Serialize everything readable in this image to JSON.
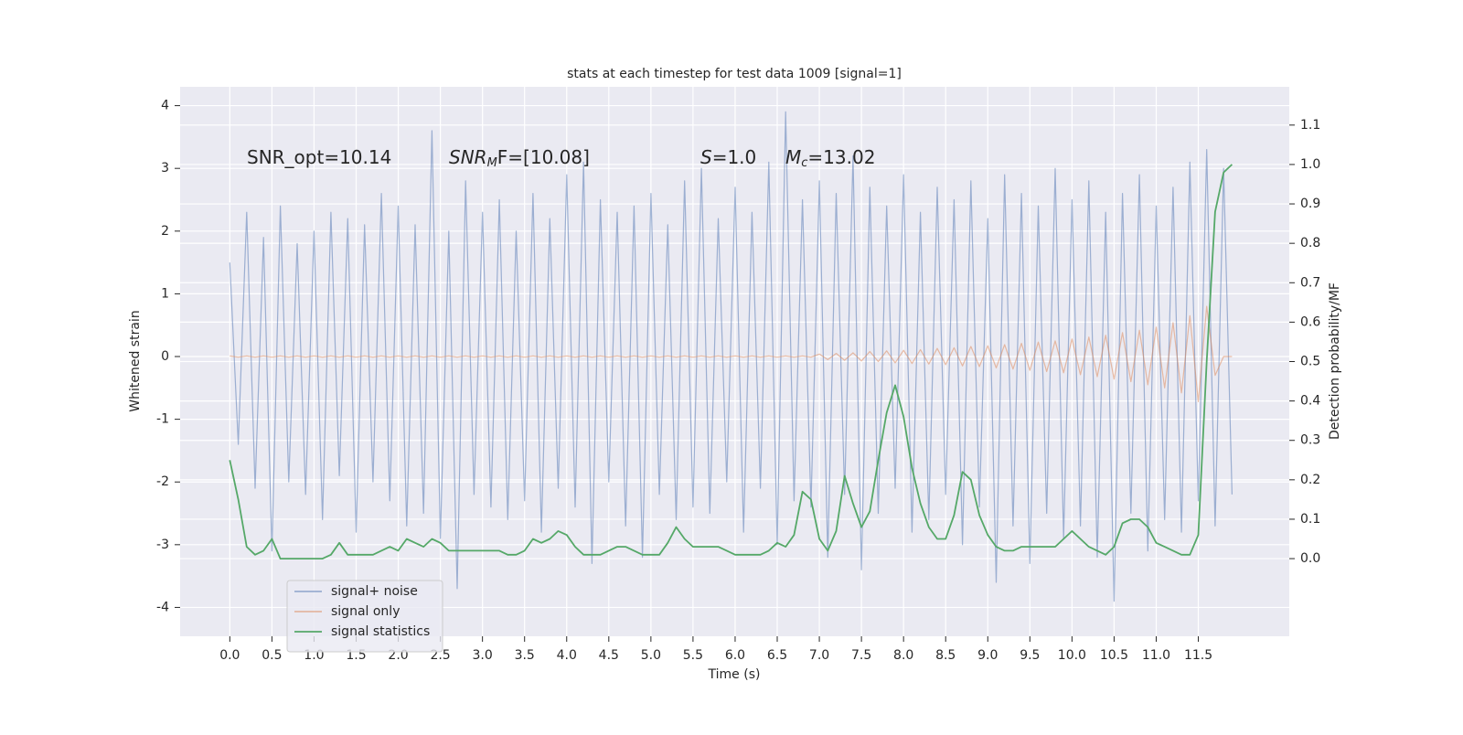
{
  "chart_data": {
    "type": "line",
    "title": "stats at each timestep for test data 1009 [signal=1]",
    "xlabel": "Time (s)",
    "ylabel": "Whitened strain",
    "y2label": "Detection probability/MF",
    "annotations": [
      [
        "SNR_opt=10.14"
      ],
      [
        "SNR",
        "M",
        "F=[10.08]"
      ],
      [
        "S",
        "=1.0"
      ],
      [
        "M",
        "c",
        "=13.02"
      ]
    ],
    "x": [
      0.0,
      0.1,
      0.2,
      0.3,
      0.4,
      0.5,
      0.6,
      0.7,
      0.8,
      0.9,
      1.0,
      1.1,
      1.2,
      1.3,
      1.4,
      1.5,
      1.6,
      1.7,
      1.8,
      1.9,
      2.0,
      2.1,
      2.2,
      2.3,
      2.4,
      2.5,
      2.6,
      2.7,
      2.8,
      2.9,
      3.0,
      3.1,
      3.2,
      3.3,
      3.4,
      3.5,
      3.6,
      3.7,
      3.8,
      3.9,
      4.0,
      4.1,
      4.2,
      4.3,
      4.4,
      4.5,
      4.6,
      4.7,
      4.8,
      4.9,
      5.0,
      5.1,
      5.2,
      5.3,
      5.4,
      5.5,
      5.6,
      5.7,
      5.8,
      5.9,
      6.0,
      6.1,
      6.2,
      6.3,
      6.4,
      6.5,
      6.6,
      6.7,
      6.8,
      6.9,
      7.0,
      7.1,
      7.2,
      7.3,
      7.4,
      7.5,
      7.6,
      7.7,
      7.8,
      7.9,
      8.0,
      8.1,
      8.2,
      8.3,
      8.4,
      8.5,
      8.6,
      8.7,
      8.8,
      8.9,
      9.0,
      9.1,
      9.2,
      9.3,
      9.4,
      9.5,
      9.6,
      9.7,
      9.8,
      9.9,
      10.0,
      10.1,
      10.2,
      10.3,
      10.4,
      10.5,
      10.6,
      10.7,
      10.8,
      10.9,
      11.0,
      11.1,
      11.2,
      11.3,
      11.4,
      11.5,
      11.6,
      11.7,
      11.8,
      11.9
    ],
    "series": [
      {
        "name": "signal+ noise",
        "color": "#4c72b0",
        "opacity": 0.5,
        "values": [
          1.5,
          -1.4,
          2.3,
          -2.1,
          1.9,
          -3.1,
          2.4,
          -2.0,
          1.8,
          -2.2,
          2.0,
          -2.6,
          2.3,
          -1.9,
          2.2,
          -2.8,
          2.1,
          -2.0,
          2.6,
          -2.3,
          2.4,
          -2.7,
          2.1,
          -2.5,
          3.6,
          -2.9,
          2.0,
          -3.7,
          2.8,
          -2.2,
          2.3,
          -2.4,
          2.5,
          -2.6,
          2.0,
          -2.3,
          2.6,
          -2.8,
          2.2,
          -2.1,
          2.9,
          -2.4,
          3.1,
          -3.3,
          2.5,
          -2.0,
          2.3,
          -2.7,
          2.4,
          -3.2,
          2.6,
          -2.2,
          2.1,
          -2.6,
          2.8,
          -2.4,
          3.0,
          -2.5,
          2.2,
          -2.0,
          2.7,
          -2.8,
          2.3,
          -2.1,
          3.1,
          -3.0,
          3.9,
          -2.3,
          2.5,
          -2.4,
          2.8,
          -3.2,
          2.6,
          -2.2,
          3.2,
          -3.4,
          2.7,
          -2.5,
          2.4,
          -2.1,
          2.9,
          -2.8,
          2.3,
          -2.6,
          2.7,
          -2.2,
          2.5,
          -3.0,
          2.8,
          -2.4,
          2.2,
          -3.6,
          2.9,
          -2.7,
          2.6,
          -3.3,
          2.4,
          -2.5,
          3.0,
          -2.9,
          2.5,
          -2.7,
          2.8,
          -3.2,
          2.3,
          -3.9,
          2.6,
          -2.5,
          2.9,
          -3.1,
          2.4,
          -2.6,
          2.7,
          -2.8,
          3.1,
          -2.3,
          3.3,
          -2.7,
          3.0,
          -2.2
        ]
      },
      {
        "name": "signal only",
        "color": "#dd8452",
        "opacity": 0.5,
        "values": [
          0.01,
          -0.01,
          0.01,
          -0.01,
          0.01,
          -0.01,
          0.01,
          -0.01,
          0.01,
          -0.01,
          0.01,
          -0.01,
          0.01,
          -0.01,
          0.01,
          -0.01,
          0.01,
          -0.01,
          0.01,
          -0.01,
          0.01,
          -0.01,
          0.01,
          -0.01,
          0.01,
          -0.01,
          0.01,
          -0.01,
          0.01,
          -0.01,
          0.01,
          -0.01,
          0.01,
          -0.01,
          0.01,
          -0.01,
          0.01,
          -0.01,
          0.01,
          -0.01,
          0.01,
          -0.01,
          0.01,
          -0.01,
          0.01,
          -0.01,
          0.01,
          -0.01,
          0.01,
          -0.01,
          0.01,
          -0.01,
          0.01,
          -0.01,
          0.01,
          -0.01,
          0.01,
          -0.01,
          0.01,
          -0.01,
          0.01,
          -0.01,
          0.01,
          -0.01,
          0.01,
          -0.01,
          0.01,
          -0.01,
          0.01,
          -0.01,
          0.04,
          -0.05,
          0.05,
          -0.06,
          0.06,
          -0.07,
          0.08,
          -0.08,
          0.09,
          -0.1,
          0.1,
          -0.11,
          0.11,
          -0.12,
          0.13,
          -0.13,
          0.14,
          -0.15,
          0.16,
          -0.16,
          0.17,
          -0.18,
          0.19,
          -0.2,
          0.21,
          -0.22,
          0.23,
          -0.24,
          0.25,
          -0.26,
          0.28,
          -0.29,
          0.31,
          -0.32,
          0.34,
          -0.36,
          0.38,
          -0.4,
          0.42,
          -0.45,
          0.47,
          -0.5,
          0.54,
          -0.58,
          0.65,
          -0.72,
          0.8,
          -0.3,
          0.0,
          0.0
        ]
      },
      {
        "name": "signal statistics",
        "color": "#55a868",
        "opacity": 1,
        "axis": "y2",
        "values": [
          0.25,
          0.15,
          0.03,
          0.01,
          0.02,
          0.05,
          0.0,
          0.0,
          0.0,
          0.0,
          0.0,
          0.0,
          0.01,
          0.04,
          0.01,
          0.01,
          0.01,
          0.01,
          0.02,
          0.03,
          0.02,
          0.05,
          0.04,
          0.03,
          0.05,
          0.04,
          0.02,
          0.02,
          0.02,
          0.02,
          0.02,
          0.02,
          0.02,
          0.01,
          0.01,
          0.02,
          0.05,
          0.04,
          0.05,
          0.07,
          0.06,
          0.03,
          0.01,
          0.01,
          0.01,
          0.02,
          0.03,
          0.03,
          0.02,
          0.01,
          0.01,
          0.01,
          0.04,
          0.08,
          0.05,
          0.03,
          0.03,
          0.03,
          0.03,
          0.02,
          0.01,
          0.01,
          0.01,
          0.01,
          0.02,
          0.04,
          0.03,
          0.06,
          0.17,
          0.15,
          0.05,
          0.02,
          0.07,
          0.21,
          0.14,
          0.08,
          0.12,
          0.25,
          0.37,
          0.44,
          0.36,
          0.23,
          0.14,
          0.08,
          0.05,
          0.05,
          0.11,
          0.22,
          0.2,
          0.11,
          0.06,
          0.03,
          0.02,
          0.02,
          0.03,
          0.03,
          0.03,
          0.03,
          0.03,
          0.05,
          0.07,
          0.05,
          0.03,
          0.02,
          0.01,
          0.03,
          0.09,
          0.1,
          0.1,
          0.08,
          0.04,
          0.03,
          0.02,
          0.01,
          0.01,
          0.06,
          0.5,
          0.88,
          0.98,
          1.0
        ]
      }
    ],
    "xlim": [
      -0.59,
      12.58
    ],
    "xticks": [
      {
        "value": 0,
        "label": "0.0"
      },
      0.5,
      {
        "value": 1,
        "label": "1.0"
      },
      1.5,
      {
        "value": 2,
        "label": "2.0"
      },
      2.5,
      {
        "value": 3,
        "label": "3.0"
      },
      3.5,
      {
        "value": 4,
        "label": "4.0"
      },
      4.5,
      {
        "value": 5,
        "label": "5.0"
      },
      5.5,
      {
        "value": 6,
        "label": "6.0"
      },
      6.5,
      {
        "value": 7,
        "label": "7.0"
      },
      7.5,
      {
        "value": 8,
        "label": "8.0"
      },
      8.5,
      {
        "value": 9,
        "label": "9.0"
      },
      9.5,
      {
        "value": 10,
        "label": "10.0"
      },
      10.5,
      {
        "value": 11,
        "label": "11.0"
      },
      11.5
    ],
    "ylim": [
      -4.46,
      4.3
    ],
    "yticks": [
      -4,
      -3,
      -2,
      -1,
      0,
      1,
      2,
      3,
      4
    ],
    "y2lim": [
      -0.197,
      1.197
    ],
    "y2ticks": [
      {
        "value": 0,
        "label": "0.0"
      },
      0.1,
      0.2,
      0.3,
      0.4,
      0.5,
      0.6,
      0.7,
      0.8,
      0.9,
      {
        "value": 1,
        "label": "1.0"
      },
      1.1
    ],
    "grid": true,
    "legend": "lower left"
  }
}
